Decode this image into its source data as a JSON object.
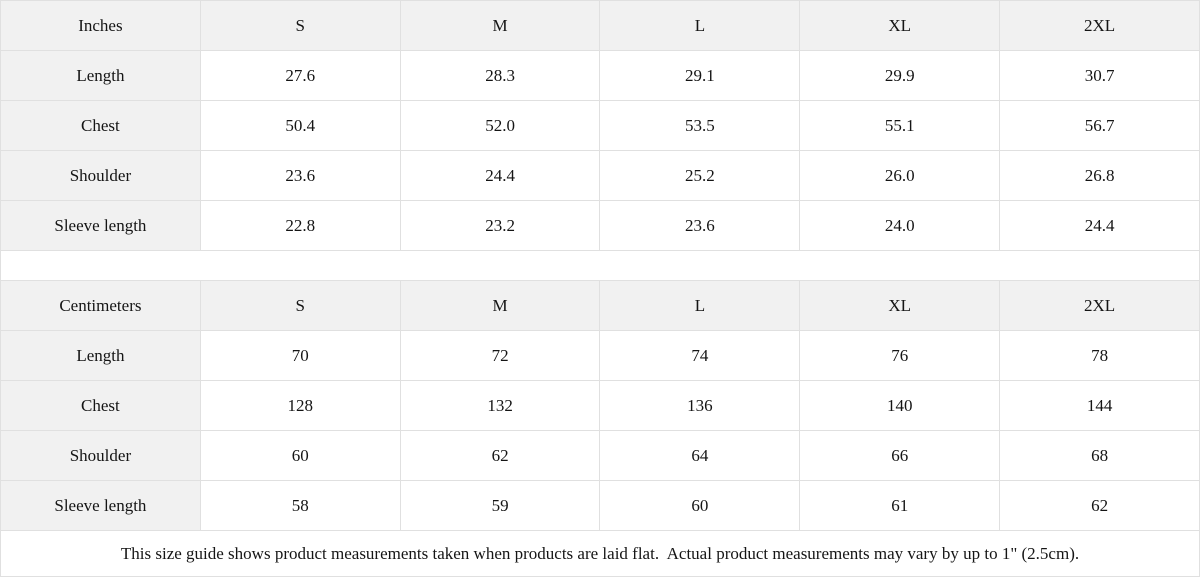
{
  "colors": {
    "header_bg": "#f1f1f1",
    "label_col_bg": "#f1f1f1",
    "cell_bg": "#ffffff",
    "border": "#e0e0e0",
    "text": "#151515"
  },
  "tables": [
    {
      "unit_label": "Inches",
      "columns": [
        "S",
        "M",
        "L",
        "XL",
        "2XL"
      ],
      "rows": [
        {
          "label": "Length",
          "values": [
            "27.6",
            "28.3",
            "29.1",
            "29.9",
            "30.7"
          ]
        },
        {
          "label": "Chest",
          "values": [
            "50.4",
            "52.0",
            "53.5",
            "55.1",
            "56.7"
          ]
        },
        {
          "label": "Shoulder",
          "values": [
            "23.6",
            "24.4",
            "25.2",
            "26.0",
            "26.8"
          ]
        },
        {
          "label": "Sleeve length",
          "values": [
            "22.8",
            "23.2",
            "23.6",
            "24.0",
            "24.4"
          ]
        }
      ]
    },
    {
      "unit_label": "Centimeters",
      "columns": [
        "S",
        "M",
        "L",
        "XL",
        "2XL"
      ],
      "rows": [
        {
          "label": "Length",
          "values": [
            "70",
            "72",
            "74",
            "76",
            "78"
          ]
        },
        {
          "label": "Chest",
          "values": [
            "128",
            "132",
            "136",
            "140",
            "144"
          ]
        },
        {
          "label": "Shoulder",
          "values": [
            "60",
            "62",
            "64",
            "66",
            "68"
          ]
        },
        {
          "label": "Sleeve length",
          "values": [
            "58",
            "59",
            "60",
            "61",
            "62"
          ]
        }
      ]
    }
  ],
  "footer_note": "This size guide shows product measurements taken when products are laid flat.  Actual product measurements may vary by up to 1\" (2.5cm)."
}
